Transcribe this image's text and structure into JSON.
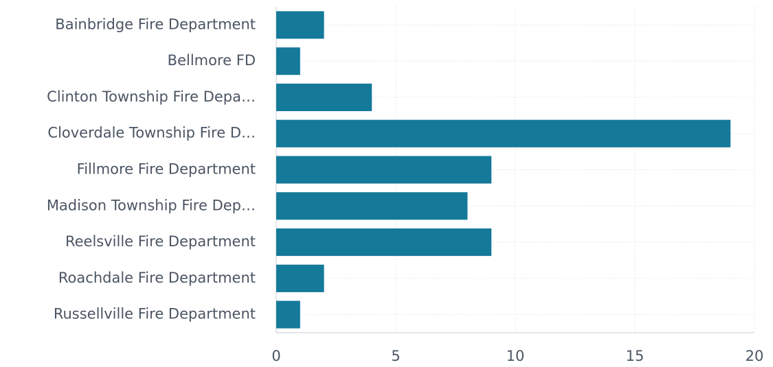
{
  "chart_data": {
    "type": "bar",
    "orientation": "horizontal",
    "categories": [
      "Bainbridge Fire Department",
      "Bellmore FD",
      "Clinton Township Fire Depa…",
      "Cloverdale Township Fire D…",
      "Fillmore Fire Department",
      "Madison Township Fire Dep…",
      "Reelsville Fire Department",
      "Roachdale Fire Department",
      "Russellville Fire Department"
    ],
    "values": [
      2,
      1,
      4,
      19,
      9,
      8,
      9,
      2,
      1
    ],
    "color": "#15799a",
    "xlim": [
      0,
      20
    ],
    "xticks": [
      0,
      5,
      10,
      15,
      20
    ],
    "grid": true
  }
}
